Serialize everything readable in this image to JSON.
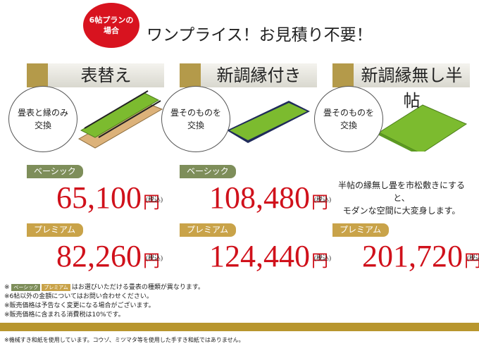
{
  "badge": {
    "line1": "6帖プランの",
    "line2": "場合"
  },
  "title": "ワンプライス！お見積り不要！",
  "plans": [
    {
      "name": "表替え",
      "bubble": {
        "line1": "畳表と縁のみ",
        "line2": "交換"
      },
      "basic": {
        "label": "ベーシック",
        "price": "65,100",
        "tax": "(税込)",
        "unit": "円"
      },
      "premium": {
        "label": "プレミアム",
        "price": "82,260",
        "tax": "(税込)",
        "unit": "円"
      }
    },
    {
      "name": "新調縁付き",
      "bubble": {
        "line1": "畳そのものを",
        "line2": "交換"
      },
      "basic": {
        "label": "ベーシック",
        "price": "108,480",
        "tax": "(税込)",
        "unit": "円"
      },
      "premium": {
        "label": "プレミアム",
        "price": "124,440",
        "tax": "(税込)",
        "unit": "円"
      }
    },
    {
      "name": "新調縁無し半帖",
      "bubble": {
        "line1": "畳そのものを",
        "line2": "交換"
      },
      "description": {
        "line1": "半帖の縁無し畳を市松敷きにすると、",
        "line2": "モダンな空間に大変身します。"
      },
      "premium": {
        "label": "プレミアム",
        "price": "201,720",
        "tax": "(税込)",
        "unit": "円"
      }
    }
  ],
  "notes": [
    {
      "mark": "※",
      "text": "はお選びいただける畳表の種類が異なります。"
    },
    "※6帖以外の金額についてはお問い合わせください。",
    "※販売価格は予告なく変更になる場合がございます。",
    "※販売価格に含まれる消費税は10%です。"
  ],
  "footer": "※機械すき和紙を使用しています。コウゾ、ミツマタ等を使用した手すき和紙ではありません。"
}
